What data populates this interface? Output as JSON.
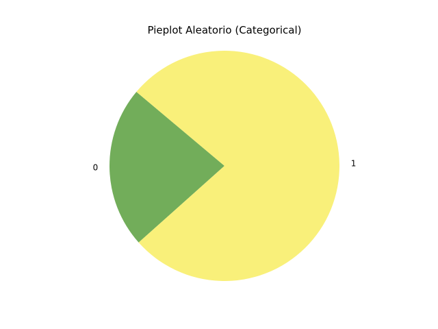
{
  "chart_data": {
    "type": "pie",
    "title": "Pieplot Aleatorio (Categorical)",
    "categories": [
      "0",
      "1"
    ],
    "values": [
      22.7,
      77.3
    ],
    "colors": [
      "#72ad5a",
      "#f9f07a"
    ],
    "labels": [
      "0",
      "1"
    ],
    "legend": "none"
  }
}
